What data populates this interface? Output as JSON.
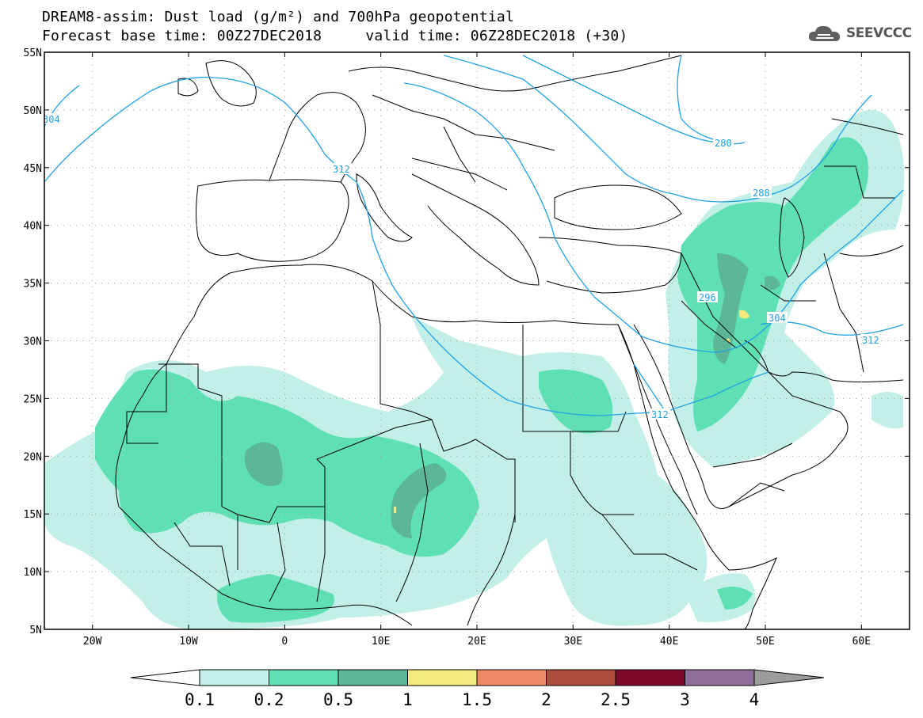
{
  "title": {
    "line1": "DREAM8-assim: Dust load (g/m²) and 700hPa geopotential",
    "line2": "Forecast base time: 00Z27DEC2018     valid time: 06Z28DEC2018 (+30)"
  },
  "logo": {
    "text": "SEEVCCC",
    "icon": "cloud-icon"
  },
  "map": {
    "lat_labels": [
      "55N",
      "50N",
      "45N",
      "40N",
      "35N",
      "30N",
      "25N",
      "20N",
      "15N",
      "10N",
      "5N"
    ],
    "lon_labels": [
      "20W",
      "10W",
      "0",
      "10E",
      "20E",
      "30E",
      "40E",
      "50E",
      "60E"
    ],
    "extent": {
      "lon": [
        -25,
        65
      ],
      "lat": [
        5,
        55
      ]
    },
    "grid": "dotted",
    "contour_labels": [
      "304",
      "312",
      "280",
      "288",
      "296",
      "304",
      "312",
      "312"
    ]
  },
  "colorbar": {
    "ticks": [
      "0.1",
      "0.2",
      "0.5",
      "1",
      "1.5",
      "2",
      "2.5",
      "3",
      "4"
    ],
    "colors": [
      "#ffffff",
      "#c2f0e8",
      "#5fe0b4",
      "#5bb795",
      "#f4e97c",
      "#ec8b66",
      "#ae4d3d",
      "#7b0a2a",
      "#8f6e9c",
      "#9c9c9c"
    ]
  }
}
